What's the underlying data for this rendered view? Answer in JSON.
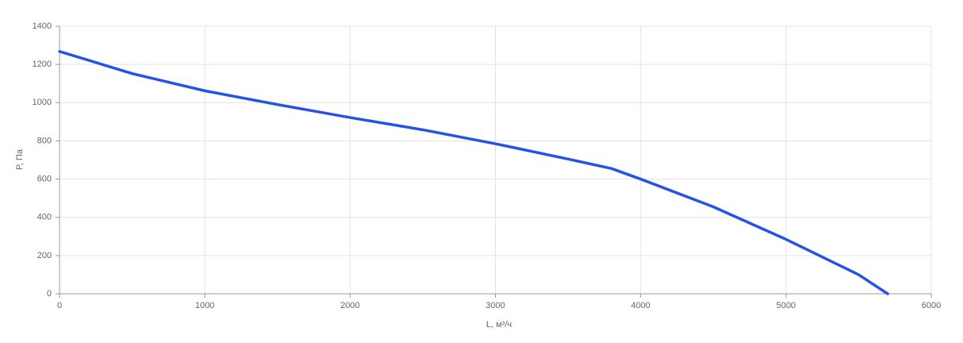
{
  "chart_data": {
    "type": "line",
    "xlabel": "L, м³/ч",
    "ylabel": "P, Па",
    "x": [
      0,
      500,
      1000,
      1500,
      2000,
      2500,
      3000,
      3500,
      3800,
      4000,
      4500,
      5000,
      5500,
      5700
    ],
    "series": [
      {
        "color": "#2453e6",
        "values": [
          1268,
          1152,
          1062,
          990,
          922,
          858,
          785,
          705,
          655,
          600,
          455,
          285,
          100,
          0
        ]
      }
    ],
    "xlim": [
      0,
      6000
    ],
    "xticks": [
      0,
      1000,
      2000,
      3000,
      4000,
      5000,
      6000
    ],
    "ylim": [
      0,
      1400
    ],
    "yticks": [
      0,
      200,
      400,
      600,
      800,
      1000,
      1200,
      1400
    ],
    "grid": true
  }
}
